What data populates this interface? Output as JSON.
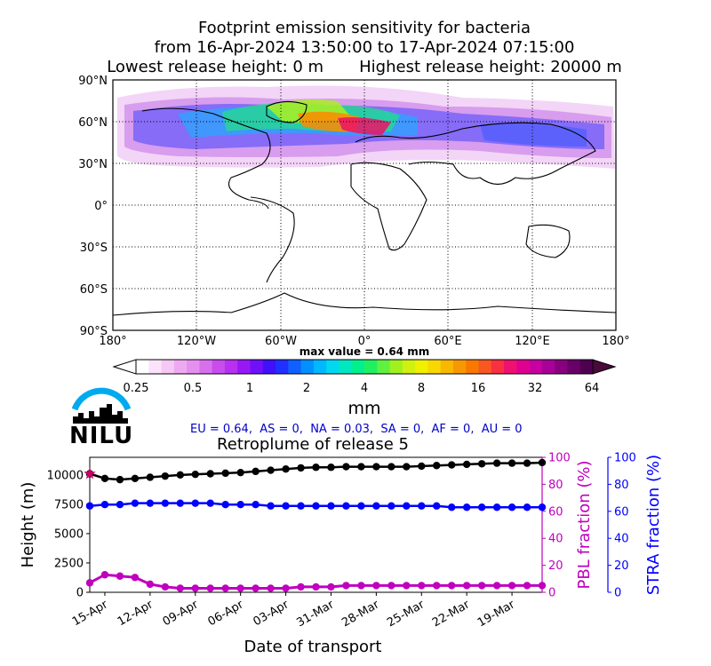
{
  "header": {
    "title_line1": "Footprint emission sensitivity for bacteria",
    "title_line2": "from 16-Apr-2024 13:50:00 to 17-Apr-2024 07:15:00",
    "title_line3": "Lowest release height: 0 m       Highest release height: 20000 m"
  },
  "map": {
    "lat_ticks": [
      "90°N",
      "60°N",
      "30°N",
      "0°",
      "30°S",
      "60°S",
      "90°S"
    ],
    "lon_ticks": [
      "180°",
      "120°W",
      "60°W",
      "0°",
      "60°E",
      "120°E",
      "180°"
    ],
    "max_value_label": "max value = 0.64 mm"
  },
  "colorbar": {
    "ticks": [
      "0.25",
      "0.5",
      "1",
      "2",
      "4",
      "8",
      "16",
      "32",
      "64"
    ],
    "unit": "mm"
  },
  "logo": {
    "text": "NILU"
  },
  "regions_text": "EU = 0.64,  AS = 0,  NA = 0.03,  SA = 0,  AF = 0,  AU = 0",
  "colors": {
    "height_line": "#000000",
    "pbl_line": "#bf00bf",
    "stra_line": "#0000ff",
    "regions_text": "#0000cc",
    "logo_arc": "#00aaee"
  },
  "chart_data": {
    "type": "line",
    "title": "Retroplume of release 5",
    "xlabel": "Date of transport",
    "x_tick_labels": [
      "15-Apr",
      "12-Apr",
      "09-Apr",
      "06-Apr",
      "03-Apr",
      "31-Mar",
      "28-Mar",
      "25-Mar",
      "22-Mar",
      "19-Mar"
    ],
    "x_tick_day_index": [
      1,
      4,
      7,
      10,
      13,
      16,
      19,
      22,
      25,
      28
    ],
    "x_days_back": [
      0,
      1,
      2,
      3,
      4,
      5,
      6,
      7,
      8,
      9,
      10,
      11,
      12,
      13,
      14,
      15,
      16,
      17,
      18,
      19,
      20,
      21,
      22,
      23,
      24,
      25,
      26,
      27,
      28,
      29,
      30
    ],
    "xlim": [
      0,
      30
    ],
    "axes": {
      "height": {
        "label": "Height (m)",
        "ylim": [
          0,
          11500
        ],
        "ticks": [
          "0",
          "2500",
          "5000",
          "7500",
          "10000"
        ]
      },
      "pbl": {
        "label": "PBL fraction (%)",
        "ylim": [
          0,
          100
        ],
        "ticks": [
          "0",
          "20",
          "40",
          "60",
          "80",
          "100"
        ]
      },
      "stra": {
        "label": "STRA fraction (%)",
        "ylim": [
          0,
          100
        ],
        "ticks": [
          "0",
          "20",
          "40",
          "60",
          "80",
          "100"
        ]
      }
    },
    "series": [
      {
        "axis": "height",
        "values": [
          10100,
          9700,
          9600,
          9700,
          9800,
          9900,
          10000,
          10050,
          10100,
          10150,
          10200,
          10300,
          10400,
          10500,
          10600,
          10650,
          10650,
          10700,
          10700,
          10700,
          10700,
          10700,
          10750,
          10800,
          10850,
          10900,
          10950,
          11000,
          11000,
          11000,
          11050
        ]
      },
      {
        "axis": "pbl",
        "values": [
          7,
          13,
          12,
          11,
          6,
          4,
          3,
          3,
          3,
          3,
          3,
          3,
          3,
          3,
          4,
          4,
          4,
          5,
          5,
          5,
          5,
          5,
          5,
          5,
          5,
          5,
          5,
          5,
          5,
          5,
          5
        ]
      },
      {
        "axis": "stra",
        "values": [
          64,
          65,
          65,
          66,
          66,
          66,
          66,
          66,
          66,
          65,
          65,
          65,
          64,
          64,
          64,
          64,
          64,
          64,
          64,
          64,
          64,
          64,
          64,
          64,
          63,
          63,
          63,
          63,
          63,
          63,
          63
        ]
      }
    ],
    "release_marker_height": 10100
  }
}
